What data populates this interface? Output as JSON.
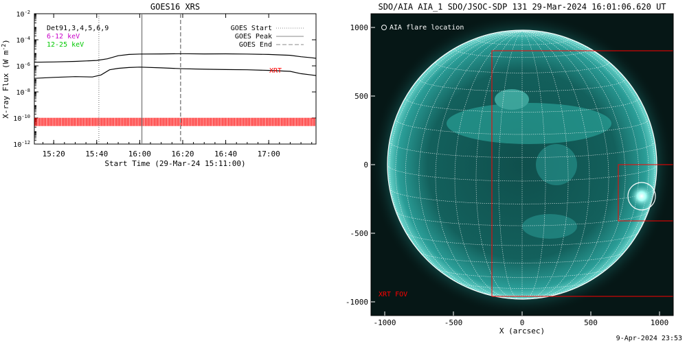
{
  "goes_panel": {
    "title": "GOES16 XRS",
    "ylabel": "X-ray Flux (W m",
    "ylabel_sup": "-2",
    "ylabel_close": ")",
    "xlabel": "Start Time (29-Mar-24 15:11:00)",
    "legend_left": [
      {
        "text": "Det91,3,4,5,6,9",
        "color": "#000000"
      },
      {
        "text": "6-12 keV",
        "color": "#c800c8"
      },
      {
        "text": "12-25 keV",
        "color": "#00c800"
      }
    ],
    "legend_right": [
      {
        "text": "GOES Start",
        "style": "dotted"
      },
      {
        "text": "GOES Peak",
        "style": "solid"
      },
      {
        "text": "GOES End",
        "style": "dashed"
      }
    ],
    "xrt_label": "XRT",
    "xrt_color": "#ff0000"
  },
  "aia_panel": {
    "title": "SDO/AIA AIA_1 SDO/JSOC-SDP 131 29-Mar-2024 16:01:06.620 UT",
    "legend": "AIA flare location",
    "xrt_fov_label": "XRT FOV",
    "xlabel": "X (arcsec)",
    "disk_color": "#1f8e8a",
    "fov_color": "#ff0000"
  },
  "footer": {
    "date": "9-Apr-2024 23:53"
  },
  "chart_data": [
    {
      "type": "line",
      "title": "GOES16 XRS",
      "xlabel": "Start Time (29-Mar-24 15:11:00)",
      "ylabel": "X-ray Flux (W m^-2)",
      "y_scale": "log",
      "ylim": [
        1e-12,
        0.01
      ],
      "y_ticks": [
        {
          "value": 1e-12,
          "base": "10",
          "exp": "-12"
        },
        {
          "value": 1e-10,
          "base": "10",
          "exp": "-10"
        },
        {
          "value": 1e-08,
          "base": "10",
          "exp": "-8"
        },
        {
          "value": 1e-06,
          "base": "10",
          "exp": "-6"
        },
        {
          "value": 0.0001,
          "base": "10",
          "exp": "-4"
        },
        {
          "value": 0.01,
          "base": "10",
          "exp": "-2"
        }
      ],
      "xlim": [
        "15:11",
        "17:22"
      ],
      "x_ticks": [
        "15:20",
        "15:40",
        "16:00",
        "16:20",
        "16:40",
        "17:00"
      ],
      "series": [
        {
          "x": [
            "15:11",
            "15:20",
            "15:30",
            "15:40",
            "15:45",
            "15:50",
            "15:55",
            "16:00",
            "16:10",
            "16:20",
            "16:30",
            "16:40",
            "16:50",
            "17:00",
            "17:10",
            "17:15",
            "17:20",
            "17:22"
          ],
          "values": [
            1.9e-06,
            2e-06,
            2.2e-06,
            2.6e-06,
            3.5e-06,
            6e-06,
            7.5e-06,
            8e-06,
            8.2e-06,
            8.5e-06,
            8.2e-06,
            8.3e-06,
            8e-06,
            7.5e-06,
            6.5e-06,
            5e-06,
            4.2e-06,
            3.8e-06
          ]
        },
        {
          "x": [
            "15:11",
            "15:20",
            "15:30",
            "15:38",
            "15:42",
            "15:46",
            "15:50",
            "15:55",
            "16:00",
            "16:10",
            "16:20",
            "16:30",
            "16:40",
            "16:50",
            "17:00",
            "17:10",
            "17:15",
            "17:20",
            "17:22"
          ],
          "values": [
            1.1e-07,
            1.3e-07,
            1.5e-07,
            1.4e-07,
            2e-07,
            5e-07,
            6.5e-07,
            7.5e-07,
            8e-07,
            7e-07,
            6e-07,
            5.5e-07,
            5.2e-07,
            5e-07,
            4.5e-07,
            3.8e-07,
            2.5e-07,
            2e-07,
            1.8e-07
          ]
        }
      ],
      "markers": {
        "goes_start": "15:41",
        "goes_peak": "16:01",
        "goes_end": "16:19"
      },
      "xrt_band_level": 5e-11
    },
    {
      "type": "image",
      "title": "SDO/AIA AIA_1 SDO/JSOC-SDP 131 29-Mar-2024 16:01:06.620 UT",
      "xlabel": "X (arcsec)",
      "xlim": [
        -1100,
        1100
      ],
      "ylim": [
        -1100,
        1100
      ],
      "x_ticks": [
        -1000,
        -500,
        0,
        500,
        1000
      ],
      "y_ticks": [
        -1000,
        -500,
        0,
        500,
        1000
      ],
      "solar_radius": 980,
      "flare_location": [
        870,
        -230
      ],
      "flare_circle_radius": 100,
      "xrt_fov_large": {
        "x": [
          -220,
          1100
        ],
        "y": [
          -960,
          830
        ]
      },
      "xrt_fov_small": {
        "x": [
          700,
          1100
        ],
        "y": [
          -410,
          0
        ]
      }
    }
  ]
}
